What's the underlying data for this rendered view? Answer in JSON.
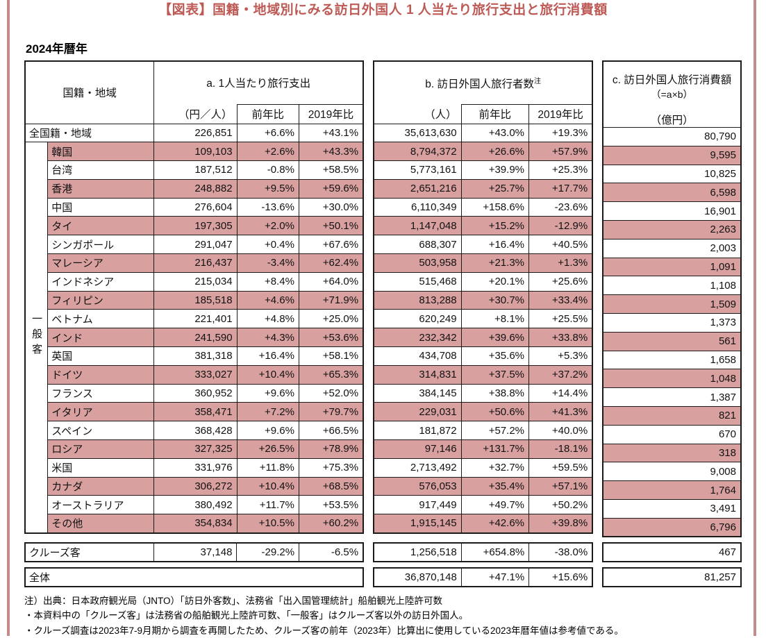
{
  "page": {
    "title": "【図表】国籍・地域別にみる訪日外国人 1 人当たり旅行支出と旅行消費額",
    "year_label": "2024年暦年",
    "accent_color": "#bd5a55",
    "row_highlight_color": "#d9a0a0",
    "edge_border_color": "#c58a8c"
  },
  "table": {
    "headers": {
      "region": "国籍・地域",
      "group_a": {
        "label": "a. 1人当たり旅行支出",
        "unit": "（円／人）",
        "yoy": "前年比",
        "vs2019": "2019年比"
      },
      "group_b": {
        "label": "b. 訪日外国人旅行者数",
        "note_mark": "注",
        "unit": "（人）",
        "yoy": "前年比",
        "vs2019": "2019年比"
      },
      "group_c": {
        "label": "c. 訪日外国人旅行消費額",
        "formula": "（=a×b）",
        "unit": "（億円）"
      }
    },
    "general_label": "一般客",
    "rows": [
      {
        "name": "全国籍・地域",
        "a": "226,851",
        "a_yoy": "+6.6%",
        "a_2019": "+43.1%",
        "b": "35,613,630",
        "b_yoy": "+43.0%",
        "b_2019": "+19.3%",
        "c": "80,790",
        "hl": false
      },
      {
        "name": "韓国",
        "a": "109,103",
        "a_yoy": "+2.6%",
        "a_2019": "+43.3%",
        "b": "8,794,372",
        "b_yoy": "+26.6%",
        "b_2019": "+57.9%",
        "c": "9,595",
        "hl": true
      },
      {
        "name": "台湾",
        "a": "187,512",
        "a_yoy": "-0.8%",
        "a_2019": "+58.5%",
        "b": "5,773,161",
        "b_yoy": "+39.9%",
        "b_2019": "+25.3%",
        "c": "10,825",
        "hl": false
      },
      {
        "name": "香港",
        "a": "248,882",
        "a_yoy": "+9.5%",
        "a_2019": "+59.6%",
        "b": "2,651,216",
        "b_yoy": "+25.7%",
        "b_2019": "+17.7%",
        "c": "6,598",
        "hl": true
      },
      {
        "name": "中国",
        "a": "276,604",
        "a_yoy": "-13.6%",
        "a_2019": "+30.0%",
        "b": "6,110,349",
        "b_yoy": "+158.6%",
        "b_2019": "-23.6%",
        "c": "16,901",
        "hl": false
      },
      {
        "name": "タイ",
        "a": "197,305",
        "a_yoy": "+2.0%",
        "a_2019": "+50.1%",
        "b": "1,147,048",
        "b_yoy": "+15.2%",
        "b_2019": "-12.9%",
        "c": "2,263",
        "hl": true
      },
      {
        "name": "シンガポール",
        "a": "291,047",
        "a_yoy": "+0.4%",
        "a_2019": "+67.6%",
        "b": "688,307",
        "b_yoy": "+16.4%",
        "b_2019": "+40.5%",
        "c": "2,003",
        "hl": false
      },
      {
        "name": "マレーシア",
        "a": "216,437",
        "a_yoy": "-3.4%",
        "a_2019": "+62.4%",
        "b": "503,958",
        "b_yoy": "+21.3%",
        "b_2019": "+1.3%",
        "c": "1,091",
        "hl": true
      },
      {
        "name": "インドネシア",
        "a": "215,034",
        "a_yoy": "+8.4%",
        "a_2019": "+64.0%",
        "b": "515,468",
        "b_yoy": "+20.1%",
        "b_2019": "+25.6%",
        "c": "1,108",
        "hl": false
      },
      {
        "name": "フィリピン",
        "a": "185,518",
        "a_yoy": "+4.6%",
        "a_2019": "+71.9%",
        "b": "813,288",
        "b_yoy": "+30.7%",
        "b_2019": "+33.4%",
        "c": "1,509",
        "hl": true
      },
      {
        "name": "ベトナム",
        "a": "221,401",
        "a_yoy": "+4.8%",
        "a_2019": "+25.0%",
        "b": "620,249",
        "b_yoy": "+8.1%",
        "b_2019": "+25.5%",
        "c": "1,373",
        "hl": false
      },
      {
        "name": "インド",
        "a": "241,590",
        "a_yoy": "+4.3%",
        "a_2019": "+53.6%",
        "b": "232,342",
        "b_yoy": "+39.6%",
        "b_2019": "+33.8%",
        "c": "561",
        "hl": true
      },
      {
        "name": "英国",
        "a": "381,318",
        "a_yoy": "+16.4%",
        "a_2019": "+58.1%",
        "b": "434,708",
        "b_yoy": "+35.6%",
        "b_2019": "+5.3%",
        "c": "1,658",
        "hl": false
      },
      {
        "name": "ドイツ",
        "a": "333,027",
        "a_yoy": "+10.4%",
        "a_2019": "+65.3%",
        "b": "314,831",
        "b_yoy": "+37.5%",
        "b_2019": "+37.2%",
        "c": "1,048",
        "hl": true
      },
      {
        "name": "フランス",
        "a": "360,952",
        "a_yoy": "+9.6%",
        "a_2019": "+52.0%",
        "b": "384,145",
        "b_yoy": "+38.8%",
        "b_2019": "+14.4%",
        "c": "1,387",
        "hl": false
      },
      {
        "name": "イタリア",
        "a": "358,471",
        "a_yoy": "+7.2%",
        "a_2019": "+79.7%",
        "b": "229,031",
        "b_yoy": "+50.6%",
        "b_2019": "+41.3%",
        "c": "821",
        "hl": true
      },
      {
        "name": "スペイン",
        "a": "368,428",
        "a_yoy": "+9.6%",
        "a_2019": "+66.5%",
        "b": "181,872",
        "b_yoy": "+57.2%",
        "b_2019": "+40.0%",
        "c": "670",
        "hl": false
      },
      {
        "name": "ロシア",
        "a": "327,325",
        "a_yoy": "+26.5%",
        "a_2019": "+78.9%",
        "b": "97,146",
        "b_yoy": "+131.7%",
        "b_2019": "-18.1%",
        "c": "318",
        "hl": true
      },
      {
        "name": "米国",
        "a": "331,976",
        "a_yoy": "+11.8%",
        "a_2019": "+75.3%",
        "b": "2,713,492",
        "b_yoy": "+32.7%",
        "b_2019": "+59.5%",
        "c": "9,008",
        "hl": false
      },
      {
        "name": "カナダ",
        "a": "306,272",
        "a_yoy": "+10.4%",
        "a_2019": "+68.5%",
        "b": "576,053",
        "b_yoy": "+35.4%",
        "b_2019": "+57.1%",
        "c": "1,764",
        "hl": true
      },
      {
        "name": "オーストラリア",
        "a": "380,492",
        "a_yoy": "+11.7%",
        "a_2019": "+53.5%",
        "b": "917,449",
        "b_yoy": "+49.7%",
        "b_2019": "+50.2%",
        "c": "3,491",
        "hl": false
      },
      {
        "name": "その他",
        "a": "354,834",
        "a_yoy": "+10.5%",
        "a_2019": "+60.2%",
        "b": "1,915,145",
        "b_yoy": "+42.6%",
        "b_2019": "+39.8%",
        "c": "6,796",
        "hl": true
      }
    ],
    "cruise": {
      "name": "クルーズ客",
      "a": "37,148",
      "a_yoy": "-29.2%",
      "a_2019": "-6.5%",
      "b": "1,256,518",
      "b_yoy": "+654.8%",
      "b_2019": "-38.0%",
      "c": "467"
    },
    "total": {
      "name": "全体",
      "b": "36,870,148",
      "b_yoy": "+47.1%",
      "b_2019": "+15.6%",
      "c": "81,257"
    }
  },
  "notes": [
    "注）出典：日本政府観光局（JNTO）「訪日外客数」、法務省「出入国管理統計」船舶観光上陸許可数",
    "・本資料中の「クルーズ客」は法務省の船舶観光上陸許可数、「一般客」はクルーズ客以外の訪日外国人。",
    "・クルーズ調査は2023年7-9月期から調査を再開したため、クルーズ客の前年（2023年）比算出に使用している2023年暦年値は参考値である。"
  ]
}
